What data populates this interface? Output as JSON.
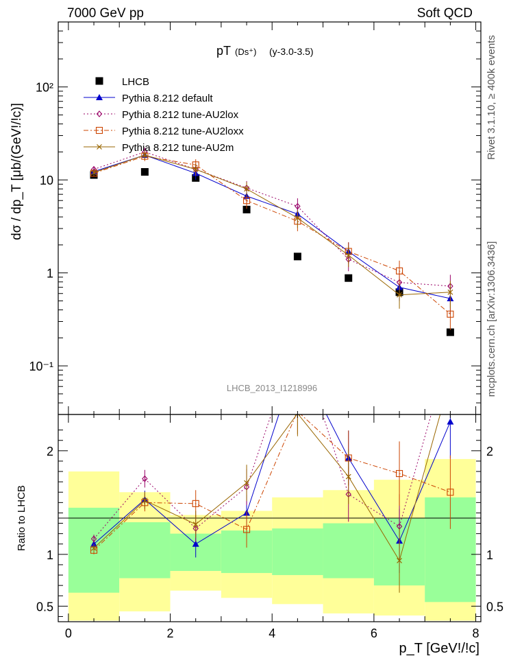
{
  "header": {
    "left": "7000 GeV pp",
    "right": "Soft QCD"
  },
  "side_text": {
    "rivet": "Rivet 3.1.10, ≥ 400k events",
    "site": "mcplots.cern.ch [arXiv:1306.3436]"
  },
  "chart_data": [
    {
      "type": "line",
      "title_main": "pT",
      "title_particle": "(Ds⁺)",
      "title_range": "(y-3.0-3.5)",
      "watermark": "LHCB_2013_I1218996",
      "ylabel": "dσ / dp_T [μb/(GeV!/!c)]",
      "yscale": "log",
      "ylim": [
        0.03,
        500
      ],
      "xlim": [
        -0.2,
        8.1
      ],
      "ytick_labels": [
        "10⁻¹",
        "1",
        "10",
        "10²"
      ],
      "ytick_values": [
        0.1,
        1,
        10,
        100
      ],
      "x": [
        0.5,
        1.5,
        2.5,
        3.5,
        4.5,
        5.5,
        6.5,
        7.5
      ],
      "legend_position": "top-left",
      "series": [
        {
          "name": "LHCB",
          "style": "marker",
          "color": "#000000",
          "values": [
            11.3,
            12.2,
            10.5,
            4.8,
            1.5,
            0.88,
            0.62,
            0.23
          ]
        },
        {
          "name": "Pythia 8.212 default",
          "style": "solid",
          "marker": "triangle",
          "color": "#0000cc",
          "values": [
            12.3,
            18.5,
            11.8,
            6.7,
            4.3,
            1.7,
            0.7,
            0.53
          ]
        },
        {
          "name": "Pythia 8.212 tune-AU2lox",
          "style": "dotted",
          "marker": "diamond",
          "color": "#990066",
          "values": [
            13.0,
            20.0,
            13.0,
            8.2,
            5.2,
            1.4,
            0.79,
            0.72
          ]
        },
        {
          "name": "Pythia 8.212 tune-AU2loxx",
          "style": "dashdot",
          "marker": "square",
          "color": "#cc4400",
          "values": [
            11.8,
            18.0,
            14.5,
            6.0,
            3.6,
            1.7,
            1.05,
            0.36
          ]
        },
        {
          "name": "Pythia 8.212 tune-AU2m",
          "style": "solid",
          "marker": "star",
          "color": "#996600",
          "values": [
            12.0,
            18.5,
            13.0,
            8.0,
            3.9,
            1.55,
            0.58,
            0.62
          ]
        }
      ]
    },
    {
      "type": "line",
      "ylabel": "Ratio to LHCB",
      "xlabel": "p_T [GeV!/!c]",
      "ylim": [
        0.35,
        2.35
      ],
      "xlim": [
        -0.2,
        8.1
      ],
      "xtick_labels": [
        "0",
        "2",
        "4",
        "6",
        "8"
      ],
      "xtick_values": [
        0,
        2,
        4,
        6,
        8
      ],
      "ytick_labels": [
        "0.5",
        "1",
        "2"
      ],
      "ytick_values": [
        0.5,
        1,
        2
      ],
      "x": [
        0.5,
        1.5,
        2.5,
        3.5,
        4.5,
        5.5,
        6.5,
        7.5
      ],
      "bands": {
        "edges": [
          0,
          1,
          2,
          3,
          4,
          5,
          6,
          7,
          8
        ],
        "green": [
          [
            0.63,
            1.45
          ],
          [
            0.77,
            1.31
          ],
          [
            0.84,
            1.2
          ],
          [
            0.82,
            1.23
          ],
          [
            0.8,
            1.25
          ],
          [
            0.77,
            1.3
          ],
          [
            0.7,
            1.35
          ],
          [
            0.54,
            1.55
          ]
        ],
        "yellow": [
          [
            0.36,
            1.8
          ],
          [
            0.45,
            1.6
          ],
          [
            0.65,
            1.38
          ],
          [
            0.58,
            1.42
          ],
          [
            0.52,
            1.55
          ],
          [
            0.43,
            1.62
          ],
          [
            0.41,
            1.72
          ],
          [
            0.36,
            1.92
          ]
        ]
      },
      "series": [
        {
          "name": "Pythia 8.212 default",
          "color": "#0000cc",
          "values": [
            1.1,
            1.53,
            1.1,
            1.4,
            2.9,
            1.93,
            1.13,
            2.28
          ]
        },
        {
          "name": "Pythia 8.212 tune-AU2lox",
          "color": "#990066",
          "values": [
            1.15,
            1.73,
            1.25,
            1.65,
            3.1,
            1.58,
            1.27,
            3.0
          ]
        },
        {
          "name": "Pythia 8.212 tune-AU2loxx",
          "color": "#cc4400",
          "values": [
            1.04,
            1.5,
            1.49,
            1.24,
            2.38,
            1.93,
            1.78,
            1.6
          ]
        },
        {
          "name": "Pythia 8.212 tune-AU2m",
          "color": "#996600",
          "values": [
            1.06,
            1.52,
            1.29,
            1.69,
            2.36,
            1.75,
            0.94,
            2.7
          ]
        }
      ]
    }
  ]
}
